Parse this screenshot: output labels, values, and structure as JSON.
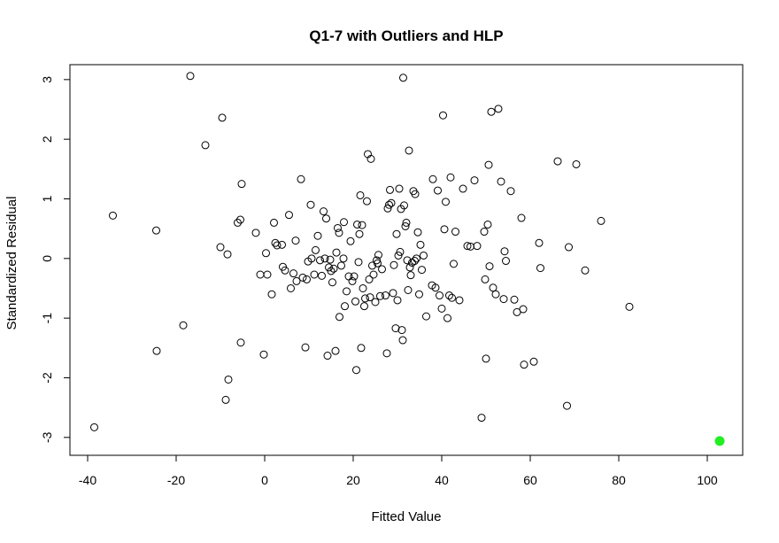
{
  "chart_data": {
    "type": "scatter",
    "title": "Q1-7 with Outliers and HLP",
    "xlabel": "Fitted Value",
    "ylabel": "Standardized Residual",
    "xlim": [
      -44,
      108
    ],
    "ylim": [
      -3.3,
      3.25
    ],
    "xticks": [
      -40,
      -20,
      0,
      20,
      40,
      60,
      80,
      100
    ],
    "yticks": [
      -3,
      -2,
      -1,
      0,
      1,
      2,
      3
    ],
    "grid": false,
    "legend": "none",
    "point_color": "#000000",
    "highlight_color": "#22ee22",
    "points": [
      [
        -38.5,
        -2.83
      ],
      [
        -34.3,
        0.72
      ],
      [
        -24.5,
        0.47
      ],
      [
        -24.4,
        -1.55
      ],
      [
        -18.4,
        -1.12
      ],
      [
        -16.8,
        3.06
      ],
      [
        -13.4,
        1.9
      ],
      [
        -10.0,
        0.19
      ],
      [
        -9.6,
        2.36
      ],
      [
        -8.8,
        -2.37
      ],
      [
        -8.4,
        0.07
      ],
      [
        -8.2,
        -2.03
      ],
      [
        -6.1,
        0.6
      ],
      [
        -5.5,
        0.65
      ],
      [
        -5.4,
        -1.41
      ],
      [
        -5.2,
        1.25
      ],
      [
        -2.0,
        0.43
      ],
      [
        -1.0,
        -0.27
      ],
      [
        -0.2,
        -1.61
      ],
      [
        0.3,
        0.09
      ],
      [
        0.6,
        -0.27
      ],
      [
        1.6,
        -0.6
      ],
      [
        2.1,
        0.6
      ],
      [
        2.4,
        0.26
      ],
      [
        2.8,
        0.22
      ],
      [
        3.9,
        0.23
      ],
      [
        4.1,
        -0.14
      ],
      [
        4.6,
        -0.2
      ],
      [
        5.5,
        0.73
      ],
      [
        5.9,
        -0.5
      ],
      [
        6.5,
        -0.25
      ],
      [
        7.0,
        0.3
      ],
      [
        7.2,
        -0.38
      ],
      [
        8.2,
        1.33
      ],
      [
        8.6,
        -0.32
      ],
      [
        9.2,
        -1.49
      ],
      [
        9.5,
        -0.35
      ],
      [
        9.8,
        -0.05
      ],
      [
        10.4,
        0.9
      ],
      [
        10.6,
        0.0
      ],
      [
        11.2,
        -0.27
      ],
      [
        11.5,
        0.14
      ],
      [
        12.0,
        0.38
      ],
      [
        12.5,
        -0.03
      ],
      [
        12.9,
        -0.29
      ],
      [
        13.3,
        0.79
      ],
      [
        13.6,
        0.0
      ],
      [
        13.9,
        0.67
      ],
      [
        14.2,
        -1.63
      ],
      [
        14.5,
        -0.15
      ],
      [
        14.8,
        -0.02
      ],
      [
        15.0,
        -0.21
      ],
      [
        15.3,
        -0.4
      ],
      [
        15.6,
        -0.17
      ],
      [
        16.0,
        -1.55
      ],
      [
        16.2,
        0.1
      ],
      [
        16.5,
        0.51
      ],
      [
        16.8,
        0.43
      ],
      [
        16.9,
        -0.98
      ],
      [
        17.3,
        -0.12
      ],
      [
        17.8,
        0.0
      ],
      [
        17.9,
        0.61
      ],
      [
        18.1,
        -0.8
      ],
      [
        18.5,
        -0.55
      ],
      [
        19.0,
        -0.3
      ],
      [
        19.4,
        0.29
      ],
      [
        19.8,
        -0.38
      ],
      [
        20.2,
        -0.3
      ],
      [
        20.5,
        -0.72
      ],
      [
        20.7,
        -1.87
      ],
      [
        20.9,
        0.57
      ],
      [
        21.2,
        -0.06
      ],
      [
        21.4,
        0.41
      ],
      [
        21.6,
        1.06
      ],
      [
        21.8,
        -1.5
      ],
      [
        22.0,
        0.56
      ],
      [
        22.2,
        -0.5
      ],
      [
        22.5,
        -0.8
      ],
      [
        22.7,
        -0.67
      ],
      [
        23.1,
        0.96
      ],
      [
        23.3,
        1.75
      ],
      [
        23.6,
        -0.35
      ],
      [
        23.8,
        -0.65
      ],
      [
        24.0,
        1.67
      ],
      [
        24.3,
        -0.12
      ],
      [
        24.6,
        -0.27
      ],
      [
        25.0,
        -0.73
      ],
      [
        25.3,
        -0.03
      ],
      [
        25.5,
        -0.08
      ],
      [
        25.7,
        0.06
      ],
      [
        26.1,
        -0.63
      ],
      [
        26.5,
        -0.18
      ],
      [
        27.3,
        -0.62
      ],
      [
        27.6,
        -1.59
      ],
      [
        27.8,
        0.84
      ],
      [
        28.1,
        0.9
      ],
      [
        28.3,
        1.15
      ],
      [
        28.6,
        0.93
      ],
      [
        29.0,
        -0.58
      ],
      [
        29.2,
        -0.11
      ],
      [
        29.6,
        -1.17
      ],
      [
        29.8,
        0.41
      ],
      [
        30.0,
        -0.7
      ],
      [
        30.2,
        0.05
      ],
      [
        30.4,
        1.17
      ],
      [
        30.6,
        0.11
      ],
      [
        30.8,
        0.83
      ],
      [
        31.0,
        -1.2
      ],
      [
        31.2,
        -1.37
      ],
      [
        31.3,
        3.03
      ],
      [
        31.5,
        0.89
      ],
      [
        31.8,
        0.54
      ],
      [
        32.0,
        0.6
      ],
      [
        32.2,
        -0.03
      ],
      [
        32.4,
        -0.53
      ],
      [
        32.6,
        1.81
      ],
      [
        32.8,
        -0.15
      ],
      [
        33.0,
        -0.28
      ],
      [
        33.3,
        -0.07
      ],
      [
        33.6,
        1.13
      ],
      [
        33.9,
        -0.04
      ],
      [
        34.0,
        1.08
      ],
      [
        34.3,
        0.0
      ],
      [
        34.6,
        0.44
      ],
      [
        34.9,
        -0.6
      ],
      [
        35.2,
        0.23
      ],
      [
        35.5,
        -0.19
      ],
      [
        35.9,
        0.05
      ],
      [
        36.5,
        -0.97
      ],
      [
        37.8,
        -0.45
      ],
      [
        38.0,
        1.33
      ],
      [
        38.6,
        -0.49
      ],
      [
        39.1,
        1.14
      ],
      [
        39.5,
        -0.62
      ],
      [
        40.0,
        -0.84
      ],
      [
        40.3,
        2.4
      ],
      [
        40.6,
        0.49
      ],
      [
        40.9,
        0.95
      ],
      [
        41.3,
        -1.0
      ],
      [
        41.7,
        -0.62
      ],
      [
        42.0,
        1.36
      ],
      [
        42.3,
        -0.66
      ],
      [
        42.7,
        -0.09
      ],
      [
        43.1,
        0.45
      ],
      [
        44.0,
        -0.7
      ],
      [
        44.8,
        1.17
      ],
      [
        45.8,
        0.21
      ],
      [
        46.5,
        0.2
      ],
      [
        47.4,
        1.31
      ],
      [
        48.0,
        0.21
      ],
      [
        49.0,
        -2.67
      ],
      [
        49.6,
        0.45
      ],
      [
        49.8,
        -0.35
      ],
      [
        50.0,
        -1.68
      ],
      [
        50.4,
        0.57
      ],
      [
        50.6,
        1.57
      ],
      [
        50.8,
        -0.13
      ],
      [
        51.2,
        2.46
      ],
      [
        51.6,
        -0.49
      ],
      [
        52.2,
        -0.6
      ],
      [
        52.8,
        2.51
      ],
      [
        53.4,
        1.29
      ],
      [
        54.0,
        -0.68
      ],
      [
        54.2,
        0.12
      ],
      [
        54.5,
        -0.04
      ],
      [
        55.6,
        1.13
      ],
      [
        56.4,
        -0.69
      ],
      [
        57.0,
        -0.9
      ],
      [
        58.0,
        0.68
      ],
      [
        58.4,
        -0.85
      ],
      [
        58.6,
        -1.78
      ],
      [
        60.8,
        -1.73
      ],
      [
        62.0,
        0.26
      ],
      [
        62.3,
        -0.16
      ],
      [
        66.2,
        1.63
      ],
      [
        68.3,
        -2.47
      ],
      [
        68.7,
        0.19
      ],
      [
        70.4,
        1.58
      ],
      [
        72.4,
        -0.2
      ],
      [
        76.0,
        0.63
      ],
      [
        82.4,
        -0.81
      ]
    ],
    "highlight_points": [
      [
        102.8,
        -3.06
      ]
    ]
  }
}
